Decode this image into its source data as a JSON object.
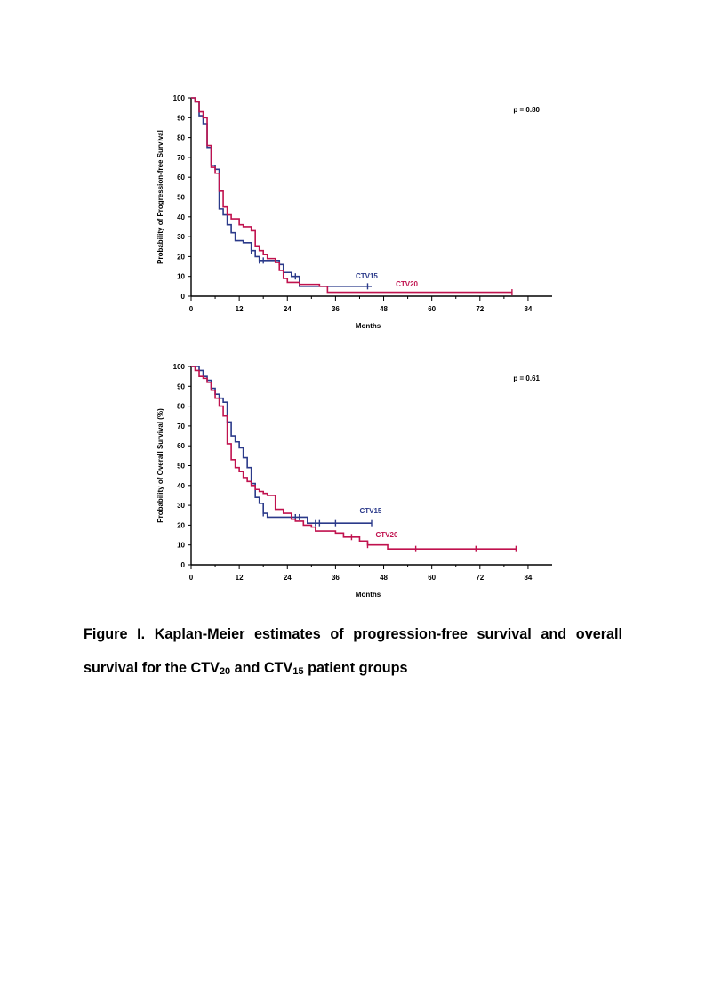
{
  "chart_data": [
    {
      "type": "line",
      "title": "",
      "xlabel": "Months",
      "ylabel": "Probability of Progression-free Survival",
      "xlim": [
        0,
        90
      ],
      "ylim": [
        0,
        100
      ],
      "xticks": [
        "0",
        "12",
        "24",
        "36",
        "48",
        "60",
        "72",
        "84"
      ],
      "yticks": [
        "0",
        "10",
        "20",
        "30",
        "40",
        "50",
        "60",
        "70",
        "80",
        "90",
        "100"
      ],
      "annotation": "p = 0.80",
      "step": true,
      "series": [
        {
          "name": "CTV15",
          "color": "#2b3a8a",
          "x": [
            0,
            1,
            2,
            3,
            4,
            5,
            6,
            7,
            8,
            9,
            10,
            11,
            12,
            13,
            14,
            15,
            16,
            17,
            18,
            19,
            20,
            21,
            22,
            23,
            24,
            25,
            26,
            27,
            28,
            29,
            30,
            31,
            32,
            33,
            34,
            35,
            36,
            37,
            38,
            39,
            40,
            41,
            42,
            43,
            44,
            45
          ],
          "y": [
            100,
            98,
            91,
            87,
            75,
            66,
            64,
            44,
            41,
            36,
            32,
            28,
            28,
            27,
            27,
            23,
            20,
            18,
            18,
            18,
            18,
            18,
            16,
            12,
            12,
            10,
            10,
            5,
            5,
            5,
            5,
            5,
            5,
            5,
            5,
            5,
            5,
            5,
            5,
            5,
            5,
            5,
            5,
            5,
            5,
            5
          ],
          "censored": [
            [
              15,
              23
            ],
            [
              17,
              18
            ],
            [
              18,
              18
            ],
            [
              23,
              12
            ],
            [
              26,
              10
            ],
            [
              44,
              5
            ]
          ]
        },
        {
          "name": "CTV20",
          "color": "#c0124e",
          "x": [
            0,
            1,
            2,
            3,
            4,
            5,
            6,
            7,
            8,
            9,
            10,
            11,
            12,
            13,
            14,
            15,
            16,
            17,
            18,
            19,
            20,
            21,
            22,
            23,
            24,
            25,
            26,
            27,
            28,
            29,
            30,
            31,
            32,
            33,
            34,
            35,
            36,
            40,
            50,
            60,
            70,
            80
          ],
          "y": [
            100,
            98,
            93,
            90,
            76,
            65,
            62,
            53,
            45,
            41,
            39,
            39,
            36,
            35,
            35,
            33,
            25,
            23,
            21,
            19,
            19,
            17,
            13,
            9,
            7,
            7,
            7,
            6,
            6,
            6,
            6,
            6,
            5,
            5,
            2,
            2,
            2,
            2,
            2,
            2,
            2,
            2
          ],
          "censored": [
            [
              80,
              2
            ]
          ]
        }
      ],
      "legend_labels": [
        {
          "text": "CTV15",
          "color": "#2b3a8a",
          "x": 41,
          "y": 9
        },
        {
          "text": "CTV20",
          "color": "#c0124e",
          "x": 51,
          "y": 5
        }
      ]
    },
    {
      "type": "line",
      "title": "",
      "xlabel": "Months",
      "ylabel": "Probability of Overall Survival (%)",
      "xlim": [
        0,
        90
      ],
      "ylim": [
        0,
        100
      ],
      "xticks": [
        "0",
        "12",
        "24",
        "36",
        "48",
        "60",
        "72",
        "84"
      ],
      "yticks": [
        "0",
        "10",
        "20",
        "30",
        "40",
        "50",
        "60",
        "70",
        "80",
        "90",
        "100"
      ],
      "annotation": "p = 0.61",
      "step": true,
      "series": [
        {
          "name": "CTV15",
          "color": "#2b3a8a",
          "x": [
            0,
            1,
            2,
            3,
            4,
            5,
            6,
            7,
            8,
            9,
            10,
            11,
            12,
            13,
            14,
            15,
            16,
            17,
            18,
            19,
            20,
            21,
            22,
            23,
            24,
            25,
            26,
            27,
            28,
            29,
            30,
            31,
            32,
            33,
            34,
            35,
            36,
            40,
            45
          ],
          "y": [
            100,
            100,
            98,
            95,
            93,
            89,
            86,
            84,
            82,
            72,
            65,
            62,
            59,
            54,
            49,
            41,
            34,
            31,
            26,
            24,
            24,
            24,
            24,
            24,
            24,
            24,
            24,
            24,
            24,
            21,
            21,
            21,
            21,
            21,
            21,
            21,
            21,
            21,
            21
          ],
          "censored": [
            [
              18,
              26
            ],
            [
              26,
              24
            ],
            [
              27,
              24
            ],
            [
              31,
              21
            ],
            [
              32,
              21
            ],
            [
              36,
              21
            ],
            [
              45,
              21
            ]
          ]
        },
        {
          "name": "CTV20",
          "color": "#c0124e",
          "x": [
            0,
            1,
            2,
            3,
            4,
            5,
            6,
            7,
            8,
            9,
            10,
            11,
            12,
            13,
            14,
            15,
            16,
            17,
            18,
            19,
            20,
            21,
            22,
            23,
            24,
            25,
            26,
            27,
            28,
            29,
            30,
            31,
            32,
            33,
            34,
            35,
            36,
            37,
            38,
            39,
            40,
            41,
            42,
            43,
            44,
            45,
            46,
            47,
            48,
            49,
            50,
            56,
            60,
            71,
            81
          ],
          "y": [
            100,
            98,
            95,
            94,
            92,
            88,
            84,
            80,
            75,
            61,
            53,
            49,
            47,
            44,
            42,
            40,
            38,
            37,
            36,
            35,
            35,
            28,
            28,
            26,
            26,
            23,
            22,
            22,
            20,
            20,
            19,
            17,
            17,
            17,
            17,
            17,
            16,
            16,
            14,
            14,
            14,
            14,
            12,
            12,
            10,
            10,
            10,
            10,
            10,
            8,
            8,
            8,
            8,
            8,
            8
          ],
          "censored": [
            [
              40,
              14
            ],
            [
              44,
              10
            ],
            [
              56,
              8
            ],
            [
              71,
              8
            ],
            [
              81,
              8
            ]
          ]
        }
      ],
      "legend_labels": [
        {
          "text": "CTV15",
          "color": "#2b3a8a",
          "x": 42,
          "y": 26
        },
        {
          "text": "CTV20",
          "color": "#c0124e",
          "x": 46,
          "y": 14
        }
      ]
    }
  ],
  "caption": {
    "line1": "Figure I. Kaplan-Meier estimates of progression-free survival and overall survival for the CTV",
    "sub1": "20",
    "mid": " and CTV",
    "sub2": "15",
    "end": " patient groups"
  }
}
